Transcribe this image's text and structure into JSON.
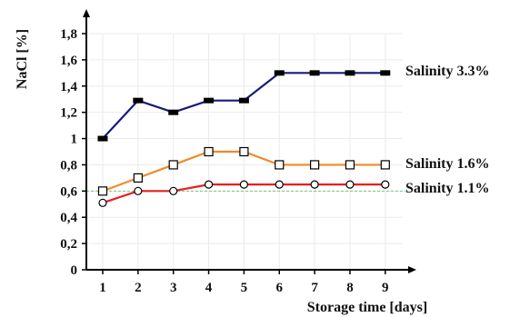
{
  "chart_data": {
    "type": "line",
    "xlabel": "Storage time [days]",
    "ylabel": "NaCl [%]",
    "xlim": [
      0.5,
      9.5
    ],
    "ylim": [
      0,
      1.8
    ],
    "x": [
      1,
      2,
      3,
      4,
      5,
      6,
      7,
      8,
      9
    ],
    "x_tick_labels": [
      "1",
      "2",
      "3",
      "4",
      "5",
      "6",
      "7",
      "8",
      "9"
    ],
    "y_ticks": [
      0,
      0.2,
      0.4,
      0.6,
      0.8,
      1,
      1.2,
      1.4,
      1.6,
      1.8
    ],
    "y_tick_labels": [
      "0",
      "0,2",
      "0,4",
      "0,6",
      "0,8",
      "1",
      "1,2",
      "1,4",
      "1,6",
      "1,8"
    ],
    "grid": true,
    "reference_line": {
      "y": 0.6,
      "color": "#7cc47c",
      "style": "dashed"
    },
    "series": [
      {
        "name": "Salinity 3.3%",
        "values": [
          1.0,
          1.29,
          1.2,
          1.29,
          1.29,
          1.5,
          1.5,
          1.5,
          1.5
        ],
        "color": "#1a1a7a",
        "marker": "filled-rect"
      },
      {
        "name": "Salinity 1.6%",
        "values": [
          0.6,
          0.7,
          0.8,
          0.9,
          0.9,
          0.8,
          0.8,
          0.8,
          0.8
        ],
        "color": "#f08a28",
        "marker": "open-square"
      },
      {
        "name": "Salinity 1.1%",
        "values": [
          0.51,
          0.6,
          0.6,
          0.65,
          0.65,
          0.65,
          0.65,
          0.65,
          0.65
        ],
        "color": "#e81e1e",
        "marker": "open-circle"
      }
    ]
  }
}
